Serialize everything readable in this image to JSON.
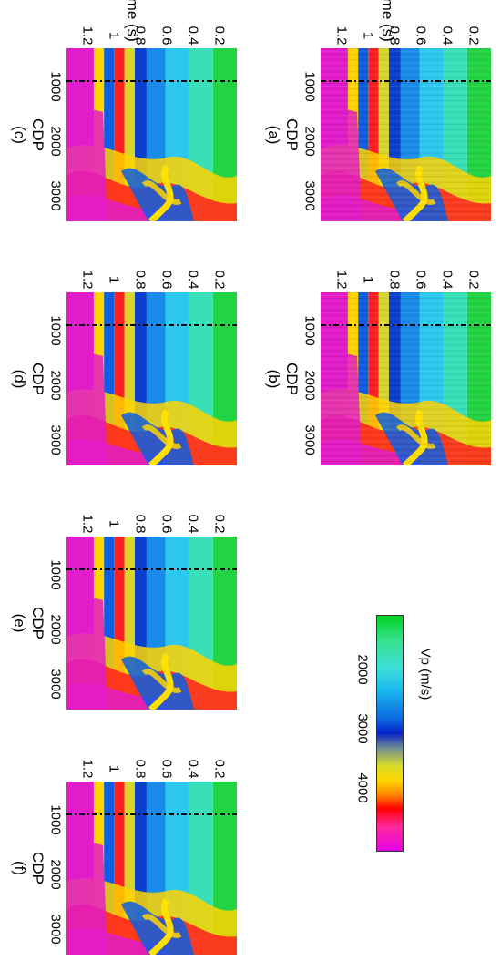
{
  "figure": {
    "axis_labels": {
      "time": "Time (s)",
      "cdp": "CDP"
    },
    "time_ticks": [
      "0.2",
      "0.4",
      "0.6",
      "0.8",
      "1",
      "1.2"
    ],
    "cdp_ticks": [
      "1000",
      "2000",
      "3000"
    ],
    "panels": [
      {
        "id": "a",
        "label": "(a)",
        "noisy": true
      },
      {
        "id": "b",
        "label": "(b)",
        "noisy": true
      },
      {
        "id": "c",
        "label": "(c)",
        "noisy": false
      },
      {
        "id": "d",
        "label": "(d)",
        "noisy": false
      },
      {
        "id": "e",
        "label": "(e)",
        "noisy": false
      },
      {
        "id": "f",
        "label": "(f)",
        "noisy": false
      }
    ],
    "colorbar": {
      "title": "Vp (m/s)",
      "ticks": [
        "2000",
        "3000",
        "4000"
      ]
    }
  }
}
